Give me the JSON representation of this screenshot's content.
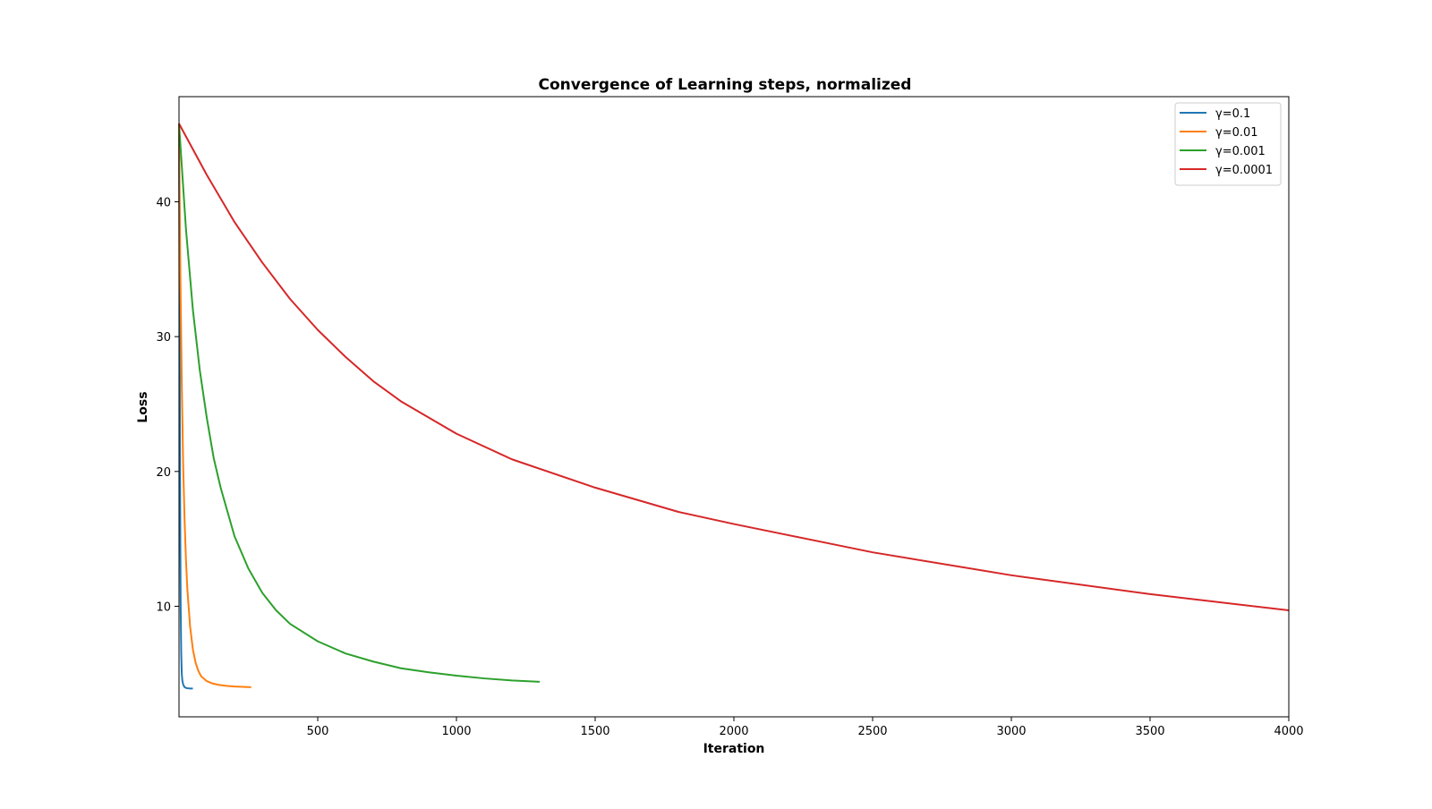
{
  "chart_data": {
    "type": "line",
    "title": "Convergence of Learning steps, normalized",
    "xlabel": "Iteration",
    "ylabel": "Loss",
    "xlim": [
      0,
      4000
    ],
    "ylim": [
      1.8,
      47.8
    ],
    "x_ticks": [
      500,
      1000,
      1500,
      2000,
      2500,
      3000,
      3500,
      4000
    ],
    "y_ticks": [
      10,
      20,
      30,
      40
    ],
    "grid": false,
    "legend_position": "top-right",
    "series": [
      {
        "name": "γ=0.1",
        "color": "#1f77b4",
        "x": [
          0,
          1,
          2,
          3,
          4,
          5,
          6,
          8,
          10,
          12,
          15,
          20,
          25,
          30,
          40,
          50
        ],
        "y": [
          45.8,
          38.5,
          32.0,
          25.0,
          19.0,
          14.0,
          10.0,
          6.5,
          5.0,
          4.5,
          4.2,
          4.0,
          3.95,
          3.92,
          3.9,
          3.9
        ]
      },
      {
        "name": "γ=0.01",
        "color": "#ff7f0e",
        "x": [
          0,
          5,
          10,
          15,
          20,
          25,
          30,
          40,
          50,
          60,
          70,
          80,
          100,
          120,
          140,
          160,
          180,
          200,
          230,
          260
        ],
        "y": [
          45.8,
          34.5,
          26.5,
          20.5,
          16.5,
          13.5,
          11.3,
          8.5,
          6.8,
          5.8,
          5.2,
          4.8,
          4.45,
          4.28,
          4.18,
          4.12,
          4.08,
          4.05,
          4.02,
          4.0
        ]
      },
      {
        "name": "γ=0.001",
        "color": "#2ca02c",
        "x": [
          0,
          25,
          50,
          75,
          100,
          125,
          150,
          200,
          250,
          300,
          350,
          400,
          500,
          600,
          700,
          800,
          900,
          1000,
          1100,
          1200,
          1300
        ],
        "y": [
          45.8,
          38.0,
          32.0,
          27.5,
          24.0,
          21.0,
          18.8,
          15.2,
          12.8,
          11.0,
          9.7,
          8.7,
          7.4,
          6.5,
          5.9,
          5.4,
          5.1,
          4.85,
          4.65,
          4.5,
          4.4
        ]
      },
      {
        "name": "γ=0.0001",
        "color": "#d62728",
        "x": [
          0,
          100,
          200,
          300,
          400,
          500,
          600,
          700,
          800,
          1000,
          1200,
          1500,
          1800,
          2000,
          2500,
          3000,
          3500,
          4000
        ],
        "y": [
          45.8,
          42.0,
          38.5,
          35.5,
          32.8,
          30.5,
          28.5,
          26.7,
          25.2,
          22.8,
          20.9,
          18.8,
          17.0,
          16.1,
          14.0,
          12.3,
          10.9,
          9.7
        ]
      }
    ]
  }
}
